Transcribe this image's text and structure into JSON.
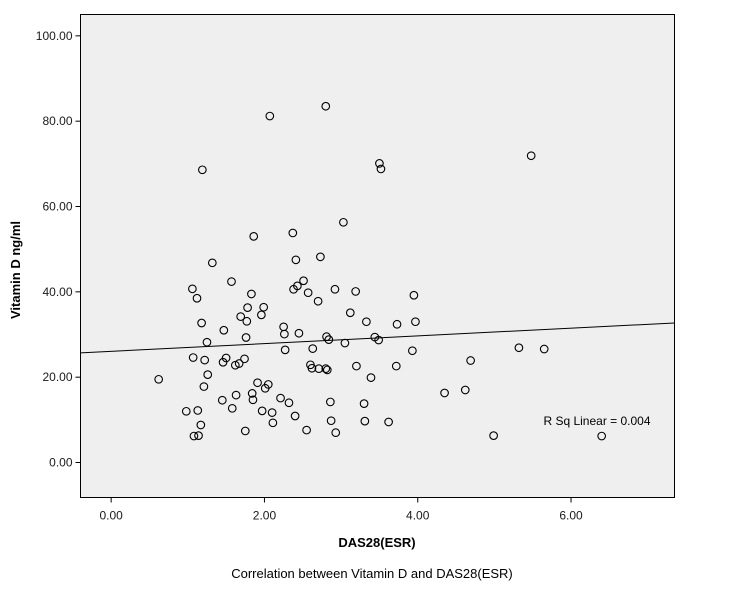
{
  "chart_data": {
    "type": "scatter",
    "xlabel": "DAS28(ESR)",
    "ylabel": "Vitamin D ng/ml",
    "caption": "Correlation between Vitamin D and DAS28(ESR)",
    "annotation": "R Sq Linear = 0.004",
    "xlim": [
      -0.4,
      7.35
    ],
    "ylim": [
      -8.2,
      105
    ],
    "x_ticks": [
      0,
      2,
      4,
      6
    ],
    "x_tick_labels": [
      "0.00",
      "2.00",
      "4.00",
      "6.00"
    ],
    "y_ticks": [
      0,
      20,
      40,
      60,
      80,
      100
    ],
    "y_tick_labels": [
      "0.00",
      "20.00",
      "40.00",
      "60.00",
      "80.00",
      "100.00"
    ],
    "fit_line": {
      "x": [
        -0.4,
        7.35
      ],
      "y": [
        25.7,
        32.7
      ]
    },
    "colors": {
      "plot_background": "#efefef",
      "marker": "#000000"
    },
    "points": [
      {
        "x": 0.62,
        "y": 19.5
      },
      {
        "x": 0.98,
        "y": 12.0
      },
      {
        "x": 1.06,
        "y": 40.7
      },
      {
        "x": 1.07,
        "y": 24.6
      },
      {
        "x": 1.08,
        "y": 6.2
      },
      {
        "x": 1.12,
        "y": 38.5
      },
      {
        "x": 1.13,
        "y": 12.2
      },
      {
        "x": 1.14,
        "y": 6.3
      },
      {
        "x": 1.17,
        "y": 8.8
      },
      {
        "x": 1.18,
        "y": 32.7
      },
      {
        "x": 1.19,
        "y": 68.6
      },
      {
        "x": 1.21,
        "y": 17.8
      },
      {
        "x": 1.22,
        "y": 24.0
      },
      {
        "x": 1.25,
        "y": 28.2
      },
      {
        "x": 1.26,
        "y": 20.6
      },
      {
        "x": 1.32,
        "y": 46.8
      },
      {
        "x": 1.45,
        "y": 14.6
      },
      {
        "x": 1.46,
        "y": 23.5
      },
      {
        "x": 1.47,
        "y": 31.0
      },
      {
        "x": 1.5,
        "y": 24.5
      },
      {
        "x": 1.57,
        "y": 42.4
      },
      {
        "x": 1.58,
        "y": 12.7
      },
      {
        "x": 1.62,
        "y": 22.8
      },
      {
        "x": 1.63,
        "y": 15.8
      },
      {
        "x": 1.67,
        "y": 23.2
      },
      {
        "x": 1.69,
        "y": 34.2
      },
      {
        "x": 1.74,
        "y": 24.3
      },
      {
        "x": 1.75,
        "y": 7.4
      },
      {
        "x": 1.76,
        "y": 29.3
      },
      {
        "x": 1.77,
        "y": 33.1
      },
      {
        "x": 1.78,
        "y": 36.3
      },
      {
        "x": 1.83,
        "y": 39.5
      },
      {
        "x": 1.84,
        "y": 16.2
      },
      {
        "x": 1.85,
        "y": 14.7
      },
      {
        "x": 1.86,
        "y": 53.0
      },
      {
        "x": 1.91,
        "y": 18.7
      },
      {
        "x": 1.96,
        "y": 34.6
      },
      {
        "x": 1.97,
        "y": 12.1
      },
      {
        "x": 1.99,
        "y": 36.4
      },
      {
        "x": 2.01,
        "y": 17.4
      },
      {
        "x": 2.05,
        "y": 18.3
      },
      {
        "x": 2.07,
        "y": 81.2
      },
      {
        "x": 2.1,
        "y": 11.7
      },
      {
        "x": 2.11,
        "y": 9.3
      },
      {
        "x": 2.21,
        "y": 15.1
      },
      {
        "x": 2.25,
        "y": 31.8
      },
      {
        "x": 2.26,
        "y": 30.1
      },
      {
        "x": 2.27,
        "y": 26.4
      },
      {
        "x": 2.32,
        "y": 14.0
      },
      {
        "x": 2.37,
        "y": 53.8
      },
      {
        "x": 2.38,
        "y": 40.6
      },
      {
        "x": 2.4,
        "y": 10.9
      },
      {
        "x": 2.41,
        "y": 47.5
      },
      {
        "x": 2.43,
        "y": 41.4
      },
      {
        "x": 2.45,
        "y": 30.3
      },
      {
        "x": 2.51,
        "y": 42.6
      },
      {
        "x": 2.55,
        "y": 7.6
      },
      {
        "x": 2.57,
        "y": 39.8
      },
      {
        "x": 2.6,
        "y": 22.9
      },
      {
        "x": 2.62,
        "y": 22.1
      },
      {
        "x": 2.63,
        "y": 26.7
      },
      {
        "x": 2.7,
        "y": 37.8
      },
      {
        "x": 2.71,
        "y": 22.0
      },
      {
        "x": 2.73,
        "y": 48.2
      },
      {
        "x": 2.8,
        "y": 83.5
      },
      {
        "x": 2.8,
        "y": 22.0
      },
      {
        "x": 2.81,
        "y": 29.5
      },
      {
        "x": 2.82,
        "y": 21.7
      },
      {
        "x": 2.84,
        "y": 28.8
      },
      {
        "x": 2.86,
        "y": 14.2
      },
      {
        "x": 2.87,
        "y": 9.8
      },
      {
        "x": 2.92,
        "y": 40.6
      },
      {
        "x": 2.93,
        "y": 7.0
      },
      {
        "x": 3.03,
        "y": 56.3
      },
      {
        "x": 3.05,
        "y": 28.0
      },
      {
        "x": 3.12,
        "y": 35.1
      },
      {
        "x": 3.19,
        "y": 40.1
      },
      {
        "x": 3.2,
        "y": 22.6
      },
      {
        "x": 3.3,
        "y": 13.8
      },
      {
        "x": 3.31,
        "y": 9.7
      },
      {
        "x": 3.33,
        "y": 33.0
      },
      {
        "x": 3.39,
        "y": 19.9
      },
      {
        "x": 3.44,
        "y": 29.4
      },
      {
        "x": 3.49,
        "y": 28.7
      },
      {
        "x": 3.5,
        "y": 70.1
      },
      {
        "x": 3.52,
        "y": 68.8
      },
      {
        "x": 3.62,
        "y": 9.5
      },
      {
        "x": 3.72,
        "y": 22.6
      },
      {
        "x": 3.73,
        "y": 32.4
      },
      {
        "x": 3.93,
        "y": 26.2
      },
      {
        "x": 3.95,
        "y": 39.2
      },
      {
        "x": 3.97,
        "y": 33.0
      },
      {
        "x": 4.35,
        "y": 16.3
      },
      {
        "x": 4.62,
        "y": 17.0
      },
      {
        "x": 4.69,
        "y": 23.9
      },
      {
        "x": 4.99,
        "y": 6.3
      },
      {
        "x": 5.32,
        "y": 26.9
      },
      {
        "x": 5.48,
        "y": 71.9
      },
      {
        "x": 5.65,
        "y": 26.6
      },
      {
        "x": 6.4,
        "y": 6.2
      }
    ]
  }
}
